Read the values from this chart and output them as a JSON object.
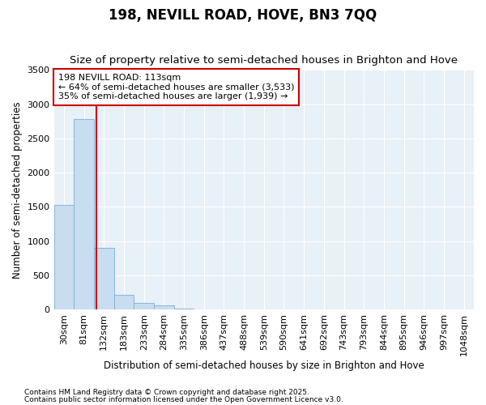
{
  "title1": "198, NEVILL ROAD, HOVE, BN3 7QQ",
  "title2": "Size of property relative to semi-detached houses in Brighton and Hove",
  "xlabel": "Distribution of semi-detached houses by size in Brighton and Hove",
  "ylabel": "Number of semi-detached properties",
  "annotation_title": "198 NEVILL ROAD: 113sqm",
  "annotation_line1": "← 64% of semi-detached houses are smaller (3,533)",
  "annotation_line2": "35% of semi-detached houses are larger (1,939) →",
  "footnote1": "Contains HM Land Registry data © Crown copyright and database right 2025.",
  "footnote2": "Contains public sector information licensed under the Open Government Licence v3.0.",
  "bar_labels": [
    "30sqm",
    "81sqm",
    "132sqm",
    "183sqm",
    "233sqm",
    "284sqm",
    "335sqm",
    "386sqm",
    "437sqm",
    "488sqm",
    "539sqm",
    "590sqm",
    "641sqm",
    "692sqm",
    "743sqm",
    "793sqm",
    "844sqm",
    "895sqm",
    "946sqm",
    "997sqm",
    "1048sqm"
  ],
  "bar_values": [
    1530,
    2780,
    900,
    215,
    100,
    55,
    10,
    0,
    0,
    0,
    0,
    0,
    0,
    0,
    0,
    0,
    0,
    0,
    0,
    0,
    0
  ],
  "bar_color": "#c8ddf0",
  "bar_edge_color": "#7aafd4",
  "red_line_x": 1.62,
  "ylim": [
    0,
    3500
  ],
  "yticks": [
    0,
    500,
    1000,
    1500,
    2000,
    2500,
    3000,
    3500
  ],
  "background_color": "#ffffff",
  "plot_bg_color": "#e8f0f8",
  "grid_color": "#ffffff",
  "annotation_box_facecolor": "#ffffff",
  "annotation_box_edgecolor": "#cc0000",
  "red_line_color": "#cc0000",
  "title_fontsize": 12,
  "subtitle_fontsize": 9.5,
  "axis_label_fontsize": 8.5,
  "tick_fontsize": 8,
  "annotation_fontsize": 8,
  "footnote_fontsize": 6.5
}
